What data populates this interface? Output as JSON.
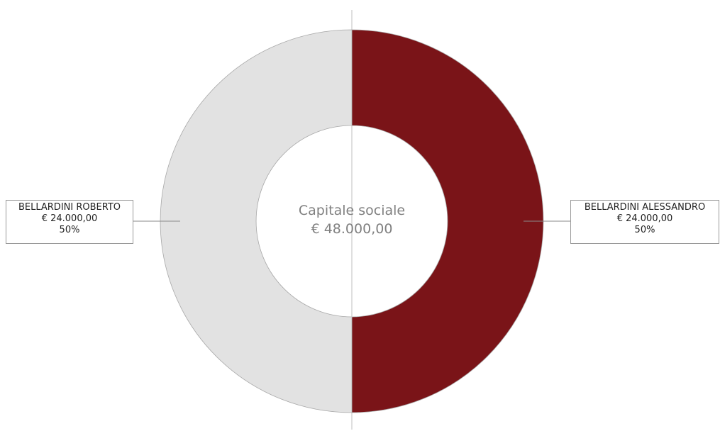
{
  "chart_data": {
    "type": "pie",
    "variant": "donut",
    "center_label": {
      "title": "Capitale sociale",
      "total": "€ 48.000,00"
    },
    "total_value": 48000,
    "slices": [
      {
        "name": "BELLARDINI ALESSANDRO",
        "value": 24000,
        "value_label": "€ 24.000,00",
        "percent_label": "50%",
        "color": "#7a1418",
        "label_side": "right"
      },
      {
        "name": "BELLARDINI ROBERTO",
        "value": 24000,
        "value_label": "€ 24.000,00",
        "percent_label": "50%",
        "color": "#e2e2e2",
        "label_side": "left"
      }
    ],
    "start_angle": "top",
    "direction": "clockwise"
  }
}
